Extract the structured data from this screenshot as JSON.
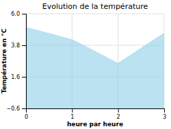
{
  "chart_data": {
    "type": "area",
    "title": "Evolution de la température",
    "xlabel": "heure par heure",
    "ylabel": "Température en °C",
    "x": [
      0,
      1,
      2,
      3
    ],
    "values": [
      5.05,
      4.2,
      2.55,
      4.65
    ],
    "xlim": [
      0,
      3
    ],
    "ylim": [
      -0.6,
      6.0
    ],
    "xticks": [
      0,
      1,
      2,
      3
    ],
    "yticks": [
      {
        "value": -0.6,
        "label": "−0.6"
      },
      {
        "value": 1.6,
        "label": "1.6"
      },
      {
        "value": 3.8,
        "label": "3.8"
      },
      {
        "value": 6.0,
        "label": "6.0"
      }
    ],
    "color": "#8ECFE8",
    "line_style": "dotted",
    "grid": true
  }
}
